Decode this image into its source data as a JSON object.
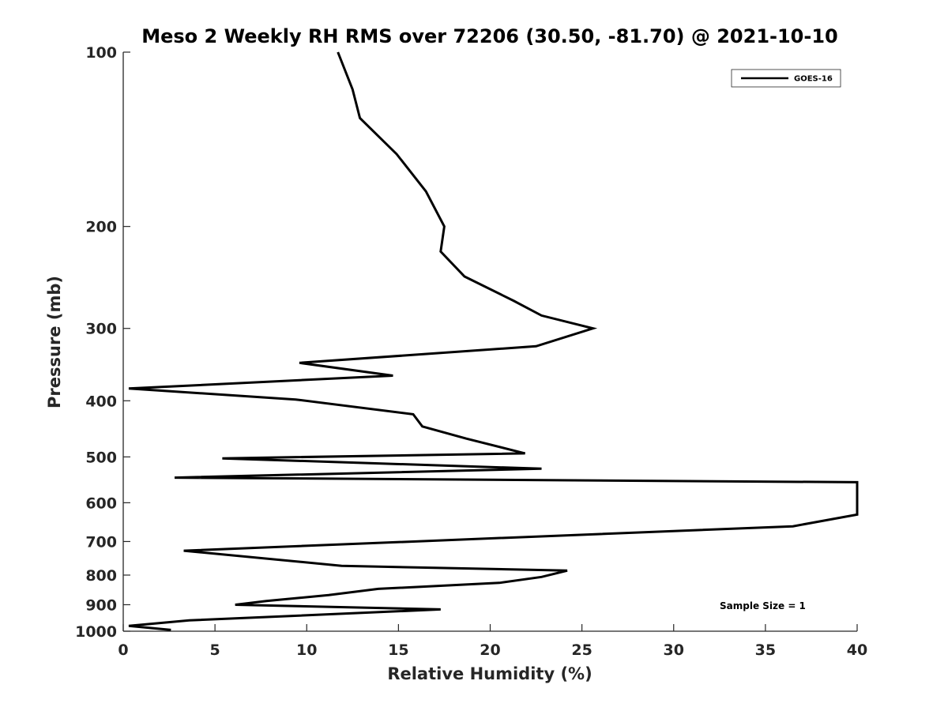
{
  "chart_data": {
    "type": "line",
    "title": "Meso 2 Weekly RH RMS over 72206 (30.50, -81.70) @ 2021-10-10",
    "xlabel": "Relative Humidity (%)",
    "ylabel": "Pressure (mb)",
    "xlim": [
      0,
      40
    ],
    "ylim": [
      100,
      1000
    ],
    "y_scale": "log",
    "y_reversed": true,
    "grid": false,
    "legend_position": "top-right",
    "x_ticks": [
      "0",
      "5",
      "10",
      "15",
      "20",
      "25",
      "30",
      "35",
      "40"
    ],
    "y_ticks": [
      "100",
      "200",
      "300",
      "400",
      "500",
      "600",
      "700",
      "800",
      "900",
      "1000"
    ],
    "series": [
      {
        "name": "GOES-16",
        "color": "#000000",
        "points": [
          [
            11.7,
            100
          ],
          [
            12.5,
            116
          ],
          [
            12.9,
            130
          ],
          [
            14.9,
            150
          ],
          [
            16.5,
            174
          ],
          [
            17.5,
            200
          ],
          [
            17.3,
            221
          ],
          [
            18.6,
            244
          ],
          [
            21.3,
            269
          ],
          [
            22.8,
            285
          ],
          [
            25.6,
            300
          ],
          [
            22.5,
            322
          ],
          [
            9.6,
            344
          ],
          [
            14.7,
            362
          ],
          [
            0.3,
            381
          ],
          [
            9.4,
            398
          ],
          [
            15.8,
            422
          ],
          [
            16.3,
            443
          ],
          [
            18.7,
            465
          ],
          [
            21.9,
            493
          ],
          [
            5.4,
            503
          ],
          [
            22.8,
            524
          ],
          [
            2.8,
            543
          ],
          [
            40.0,
            553
          ],
          [
            40.0,
            629
          ],
          [
            36.5,
            659
          ],
          [
            3.3,
            726
          ],
          [
            11.9,
            771
          ],
          [
            24.2,
            786
          ],
          [
            22.8,
            806
          ],
          [
            20.5,
            825
          ],
          [
            13.9,
            845
          ],
          [
            11.2,
            866
          ],
          [
            7.8,
            887
          ],
          [
            6.1,
            900
          ],
          [
            17.3,
            917
          ],
          [
            3.6,
            958
          ],
          [
            0.3,
            979
          ],
          [
            2.6,
            995
          ]
        ]
      }
    ],
    "annotations": [
      "Sample Size = 1"
    ]
  }
}
